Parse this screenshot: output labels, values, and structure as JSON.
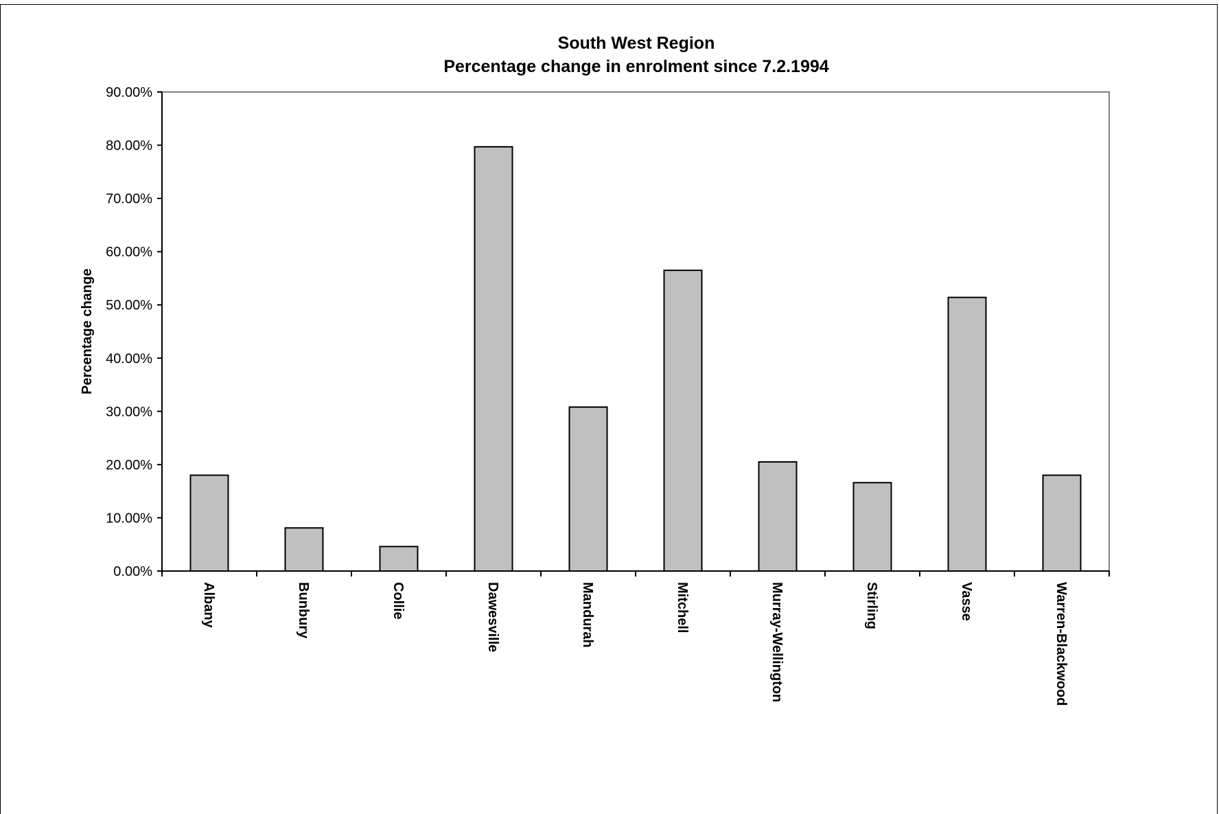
{
  "chart_data": {
    "type": "bar",
    "title": "South West Region",
    "subtitle": "Percentage change in enrolment since 7.2.1994",
    "xlabel": "",
    "ylabel": "Percentage change",
    "categories": [
      "Albany",
      "Bunbury",
      "Collie",
      "Dawesville",
      "Mandurah",
      "Mitchell",
      "Murray-Wellington",
      "Stirling",
      "Vasse",
      "Warren-Blackwood"
    ],
    "values": [
      18.0,
      8.1,
      4.6,
      79.7,
      30.8,
      56.5,
      20.5,
      16.6,
      51.4,
      18.0
    ],
    "ylim": [
      0,
      90
    ],
    "yticks": [
      "0.00%",
      "10.00%",
      "20.00%",
      "30.00%",
      "40.00%",
      "50.00%",
      "60.00%",
      "70.00%",
      "80.00%",
      "90.00%"
    ],
    "bar_color": "#c0c0c0",
    "grid": false,
    "legend": false
  }
}
